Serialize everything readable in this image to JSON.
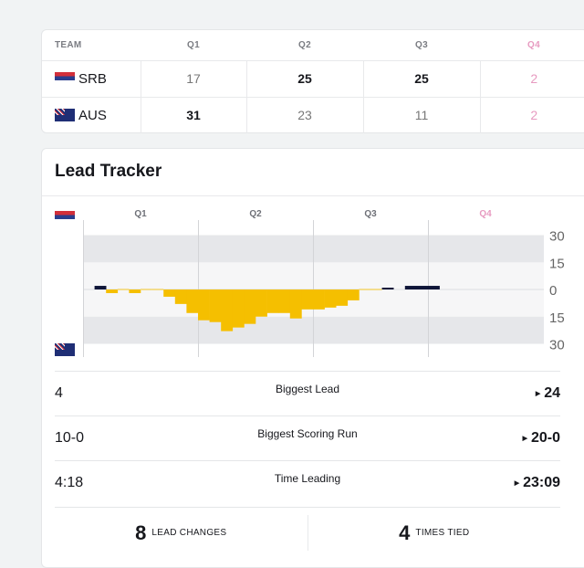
{
  "scoreboard": {
    "headers": [
      "TEAM",
      "Q1",
      "Q2",
      "Q3",
      "Q4"
    ],
    "rows": [
      {
        "team": "SRB",
        "flag": "serbia-flag",
        "scores": [
          "17",
          "25",
          "25",
          "2"
        ],
        "bold": [
          false,
          true,
          true,
          false
        ]
      },
      {
        "team": "AUS",
        "flag": "australia-flag",
        "scores": [
          "31",
          "23",
          "11",
          "2"
        ],
        "bold": [
          true,
          false,
          false,
          false
        ]
      }
    ]
  },
  "lead_tracker": {
    "title": "Lead Tracker",
    "stats": [
      {
        "label": "Biggest Lead",
        "srb": "4",
        "aus": "24"
      },
      {
        "label": "Biggest Scoring Run",
        "srb": "10-0",
        "aus": "20-0"
      },
      {
        "label": "Time Leading",
        "srb": "4:18",
        "aus": "23:09"
      }
    ],
    "lead_changes": {
      "value": "8",
      "label": "LEAD CHANGES"
    },
    "times_tied": {
      "value": "4",
      "label": "TIMES TIED"
    }
  },
  "chart_data": {
    "type": "bar",
    "quarters": [
      "Q1",
      "Q2",
      "Q3",
      "Q4"
    ],
    "y_ticks": [
      "30",
      "15",
      "0",
      "15",
      "30"
    ],
    "ylim": [
      -30,
      30
    ],
    "x_unit": "game minute",
    "margin_by_minute": [
      0,
      2,
      -2,
      0,
      -2,
      0,
      0,
      -4,
      -8,
      -13,
      -17,
      -18,
      -23,
      -21,
      -19,
      -15,
      -13,
      -13,
      -16,
      -11,
      -11,
      -10,
      -9,
      -6,
      0,
      0,
      1,
      null,
      2,
      2,
      2
    ],
    "colors": {
      "SRB": "#0f1538",
      "AUS": "#f5bf00",
      "tie": "#f3dd8e",
      "q4": "#e79ac0"
    }
  }
}
